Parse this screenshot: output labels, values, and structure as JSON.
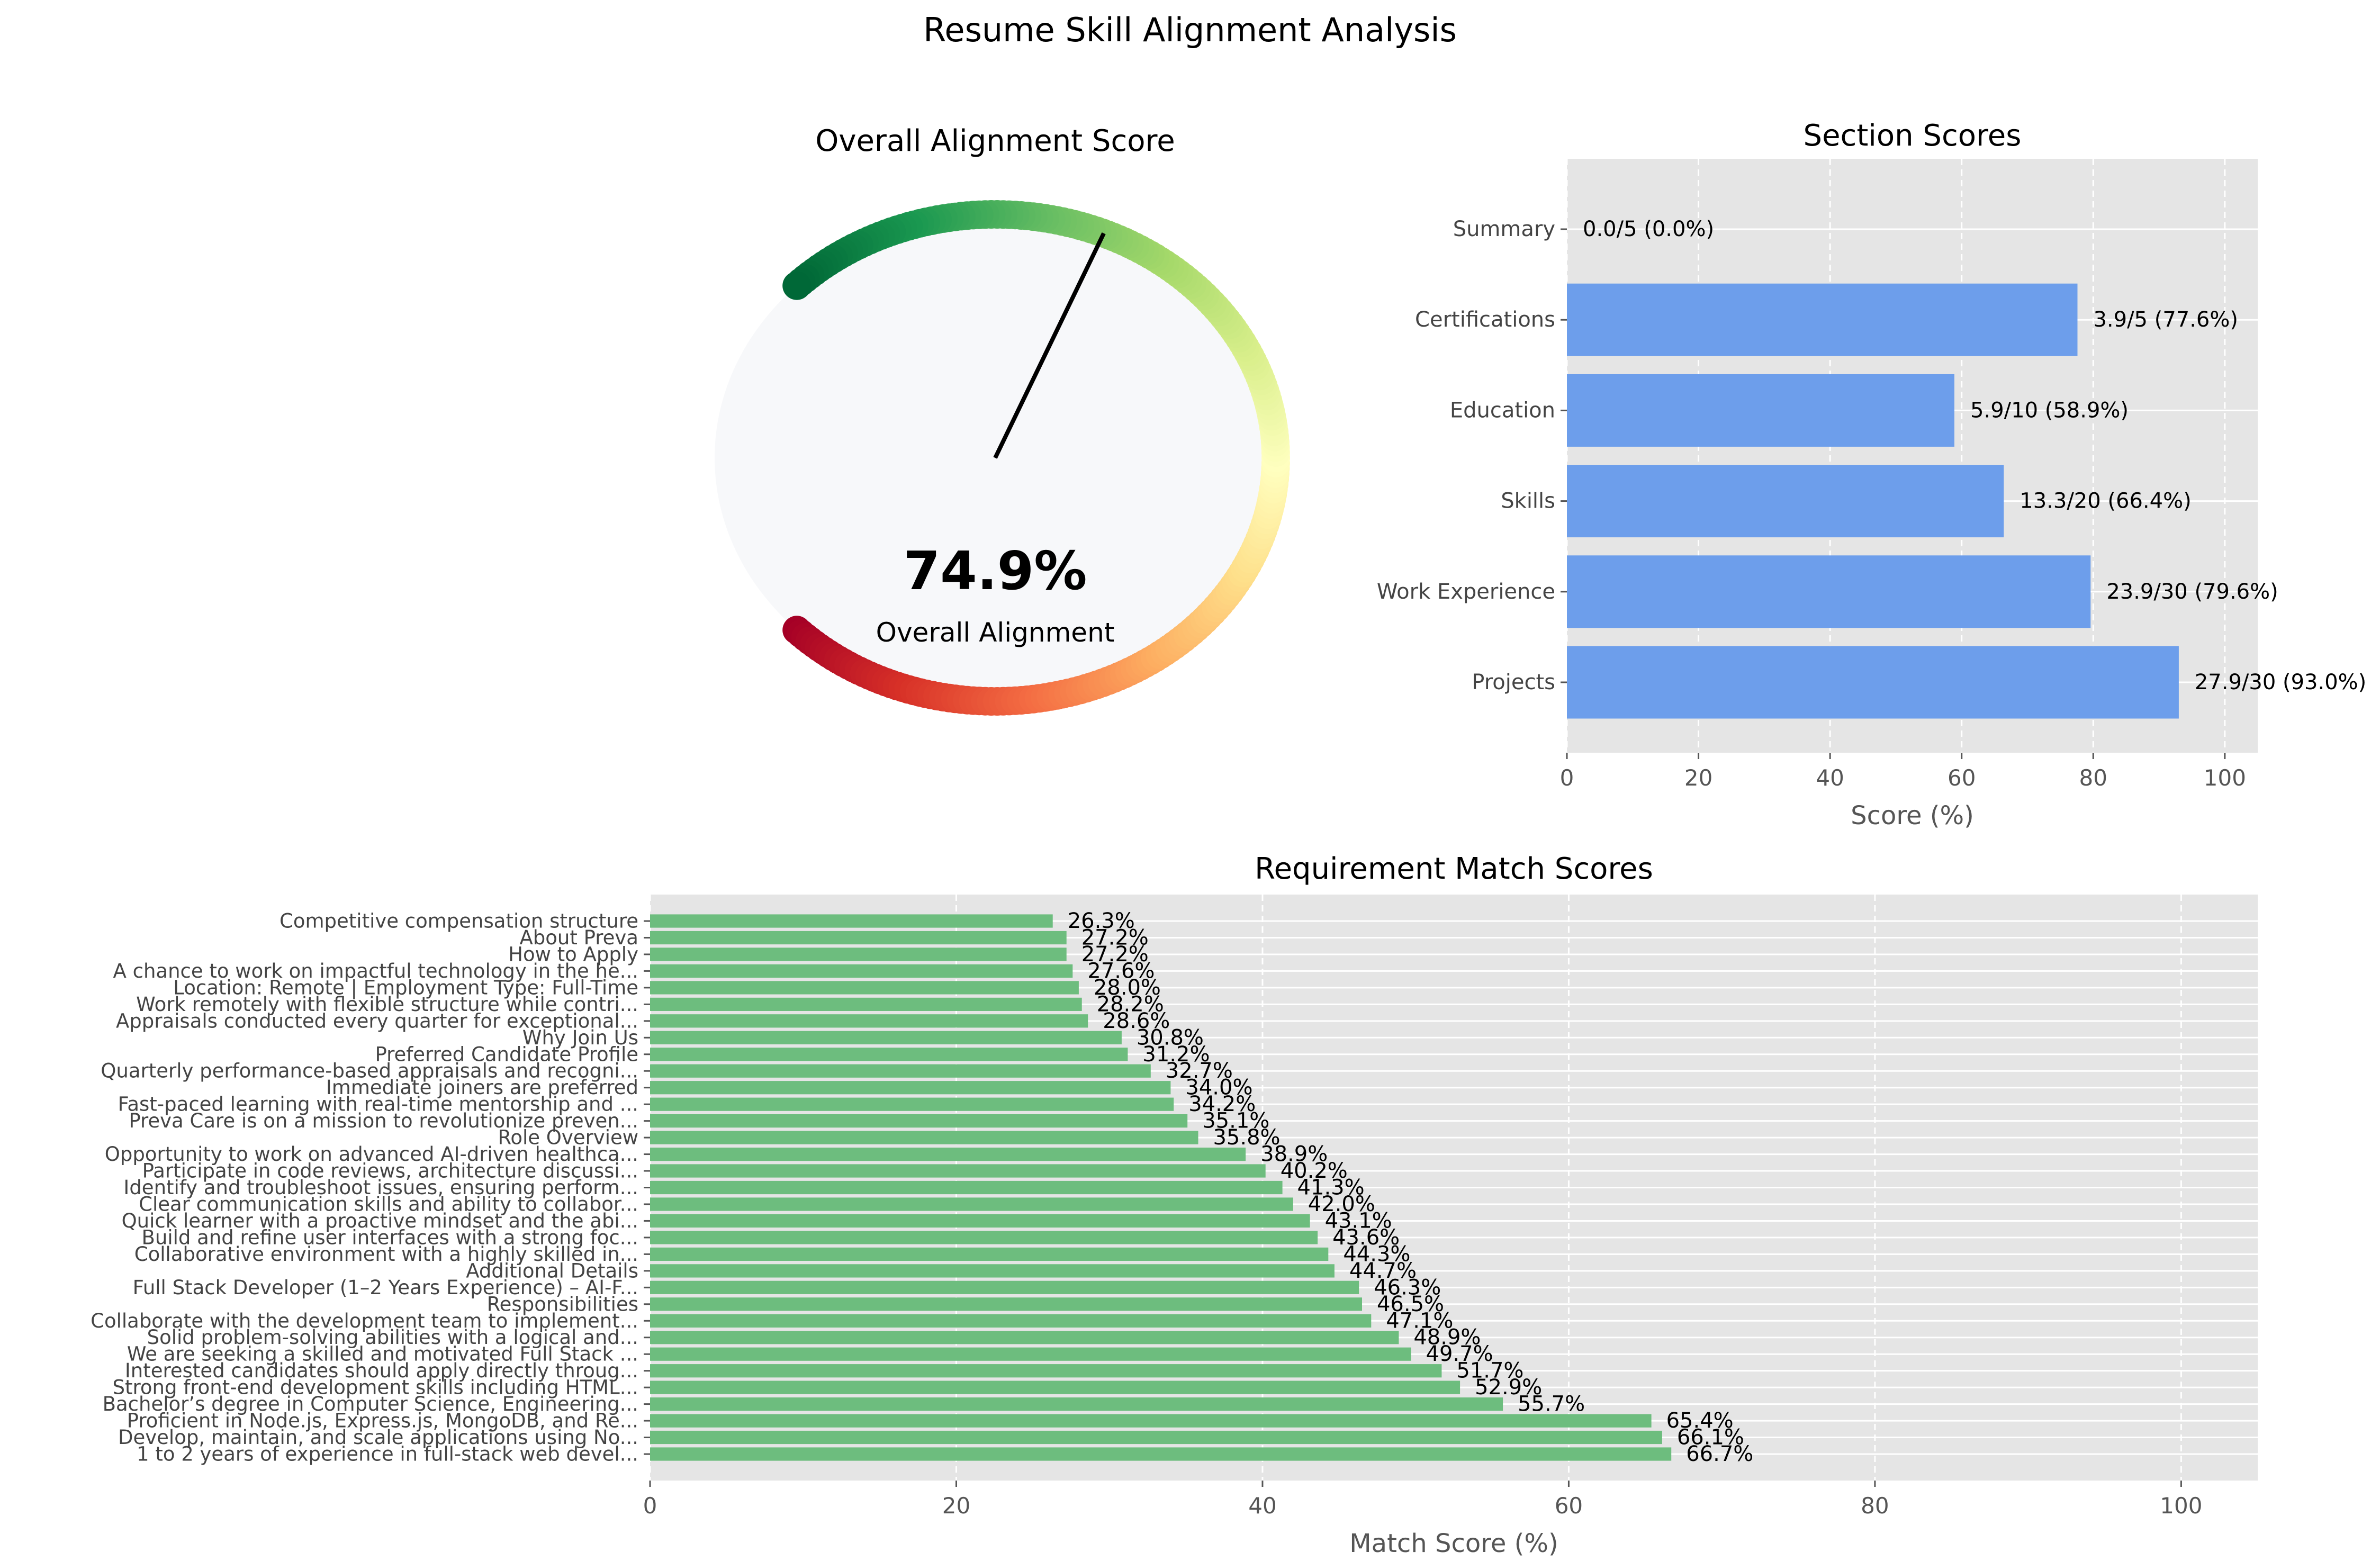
{
  "figure": {
    "suptitle": "Resume Skill Alignment Analysis"
  },
  "colors": {
    "axes_bg": "#e5e5e5",
    "grid": "#ffffff",
    "section_bar": "#6d9eeb",
    "requirement_bar": "#6dbd7e",
    "gauge_face": "#f7f8fa",
    "needle": "#000000",
    "text": "#000000",
    "tick_text": "#555555"
  },
  "chart_data": [
    {
      "type": "gauge",
      "title": "Overall Alignment Score",
      "value": 74.9,
      "value_label": "74.9%",
      "label": "Overall Alignment",
      "range": [
        0,
        100
      ],
      "colormap": "RdYlGn"
    },
    {
      "type": "bar",
      "orientation": "horizontal",
      "title": "Section Scores",
      "xlabel": "Score (%)",
      "xlim": [
        0,
        105
      ],
      "xticks": [
        0,
        20,
        40,
        60,
        80,
        100
      ],
      "grid": true,
      "categories": [
        "Summary",
        "Certifications",
        "Education",
        "Skills",
        "Work Experience",
        "Projects"
      ],
      "values": [
        0.0,
        77.6,
        58.9,
        66.4,
        79.6,
        93.0
      ],
      "data_labels": [
        "0.0/5 (0.0%)",
        "3.9/5 (77.6%)",
        "5.9/10 (58.9%)",
        "13.3/20 (66.4%)",
        "23.9/30 (79.6%)",
        "27.9/30 (93.0%)"
      ]
    },
    {
      "type": "bar",
      "orientation": "horizontal",
      "title": "Requirement Match Scores",
      "xlabel": "Match Score (%)",
      "xlim": [
        0,
        105
      ],
      "xticks": [
        0,
        20,
        40,
        60,
        80,
        100
      ],
      "grid": true,
      "categories": [
        "Competitive compensation structure",
        "About Preva",
        "How to Apply",
        "A chance to work on impactful technology in the he...",
        "Location: Remote | Employment Type: Full-Time",
        "Work remotely with flexible structure while contri...",
        "Appraisals conducted every quarter for exceptional...",
        "Why Join Us",
        "Preferred Candidate Profile",
        "Quarterly performance-based appraisals and recogni...",
        "Immediate joiners are preferred",
        "Fast-paced learning with real-time mentorship and ...",
        "Preva Care is on a mission to revolutionize preven...",
        "Role Overview",
        "Opportunity to work on advanced AI-driven healthca...",
        "Participate in code reviews, architecture discussi...",
        "Identify and troubleshoot issues, ensuring perform...",
        "Clear communication skills and ability to collabor...",
        "Quick learner with a proactive mindset and the abi...",
        "Build and refine user interfaces with a strong foc...",
        "Collaborative environment with a highly skilled in...",
        "Additional Details",
        "Full Stack Developer (1–2 Years Experience) – AI-F...",
        "Responsibilities",
        "Collaborate with the development team to implement...",
        "Solid problem-solving abilities with a logical and...",
        "We are seeking a skilled and motivated Full Stack ...",
        "Interested candidates should apply directly throug...",
        "Strong front-end development skills including HTML...",
        "Bachelor’s degree in Computer Science, Engineering...",
        "Proficient in Node.js, Express.js, MongoDB, and Re...",
        "Develop, maintain, and scale applications using No...",
        "1 to 2 years of experience in full-stack web devel..."
      ],
      "values": [
        26.3,
        27.2,
        27.2,
        27.6,
        28.0,
        28.2,
        28.6,
        30.8,
        31.2,
        32.7,
        34.0,
        34.2,
        35.1,
        35.8,
        38.9,
        40.2,
        41.3,
        42.0,
        43.1,
        43.6,
        44.3,
        44.7,
        46.3,
        46.5,
        47.1,
        48.9,
        49.7,
        51.7,
        52.9,
        55.7,
        65.4,
        66.1,
        66.7
      ],
      "data_labels": [
        "26.3%",
        "27.2%",
        "27.2%",
        "27.6%",
        "28.0%",
        "28.2%",
        "28.6%",
        "30.8%",
        "31.2%",
        "32.7%",
        "34.0%",
        "34.2%",
        "35.1%",
        "35.8%",
        "38.9%",
        "40.2%",
        "41.3%",
        "42.0%",
        "43.1%",
        "43.6%",
        "44.3%",
        "44.7%",
        "46.3%",
        "46.5%",
        "47.1%",
        "48.9%",
        "49.7%",
        "51.7%",
        "52.9%",
        "55.7%",
        "65.4%",
        "66.1%",
        "66.7%"
      ]
    }
  ]
}
